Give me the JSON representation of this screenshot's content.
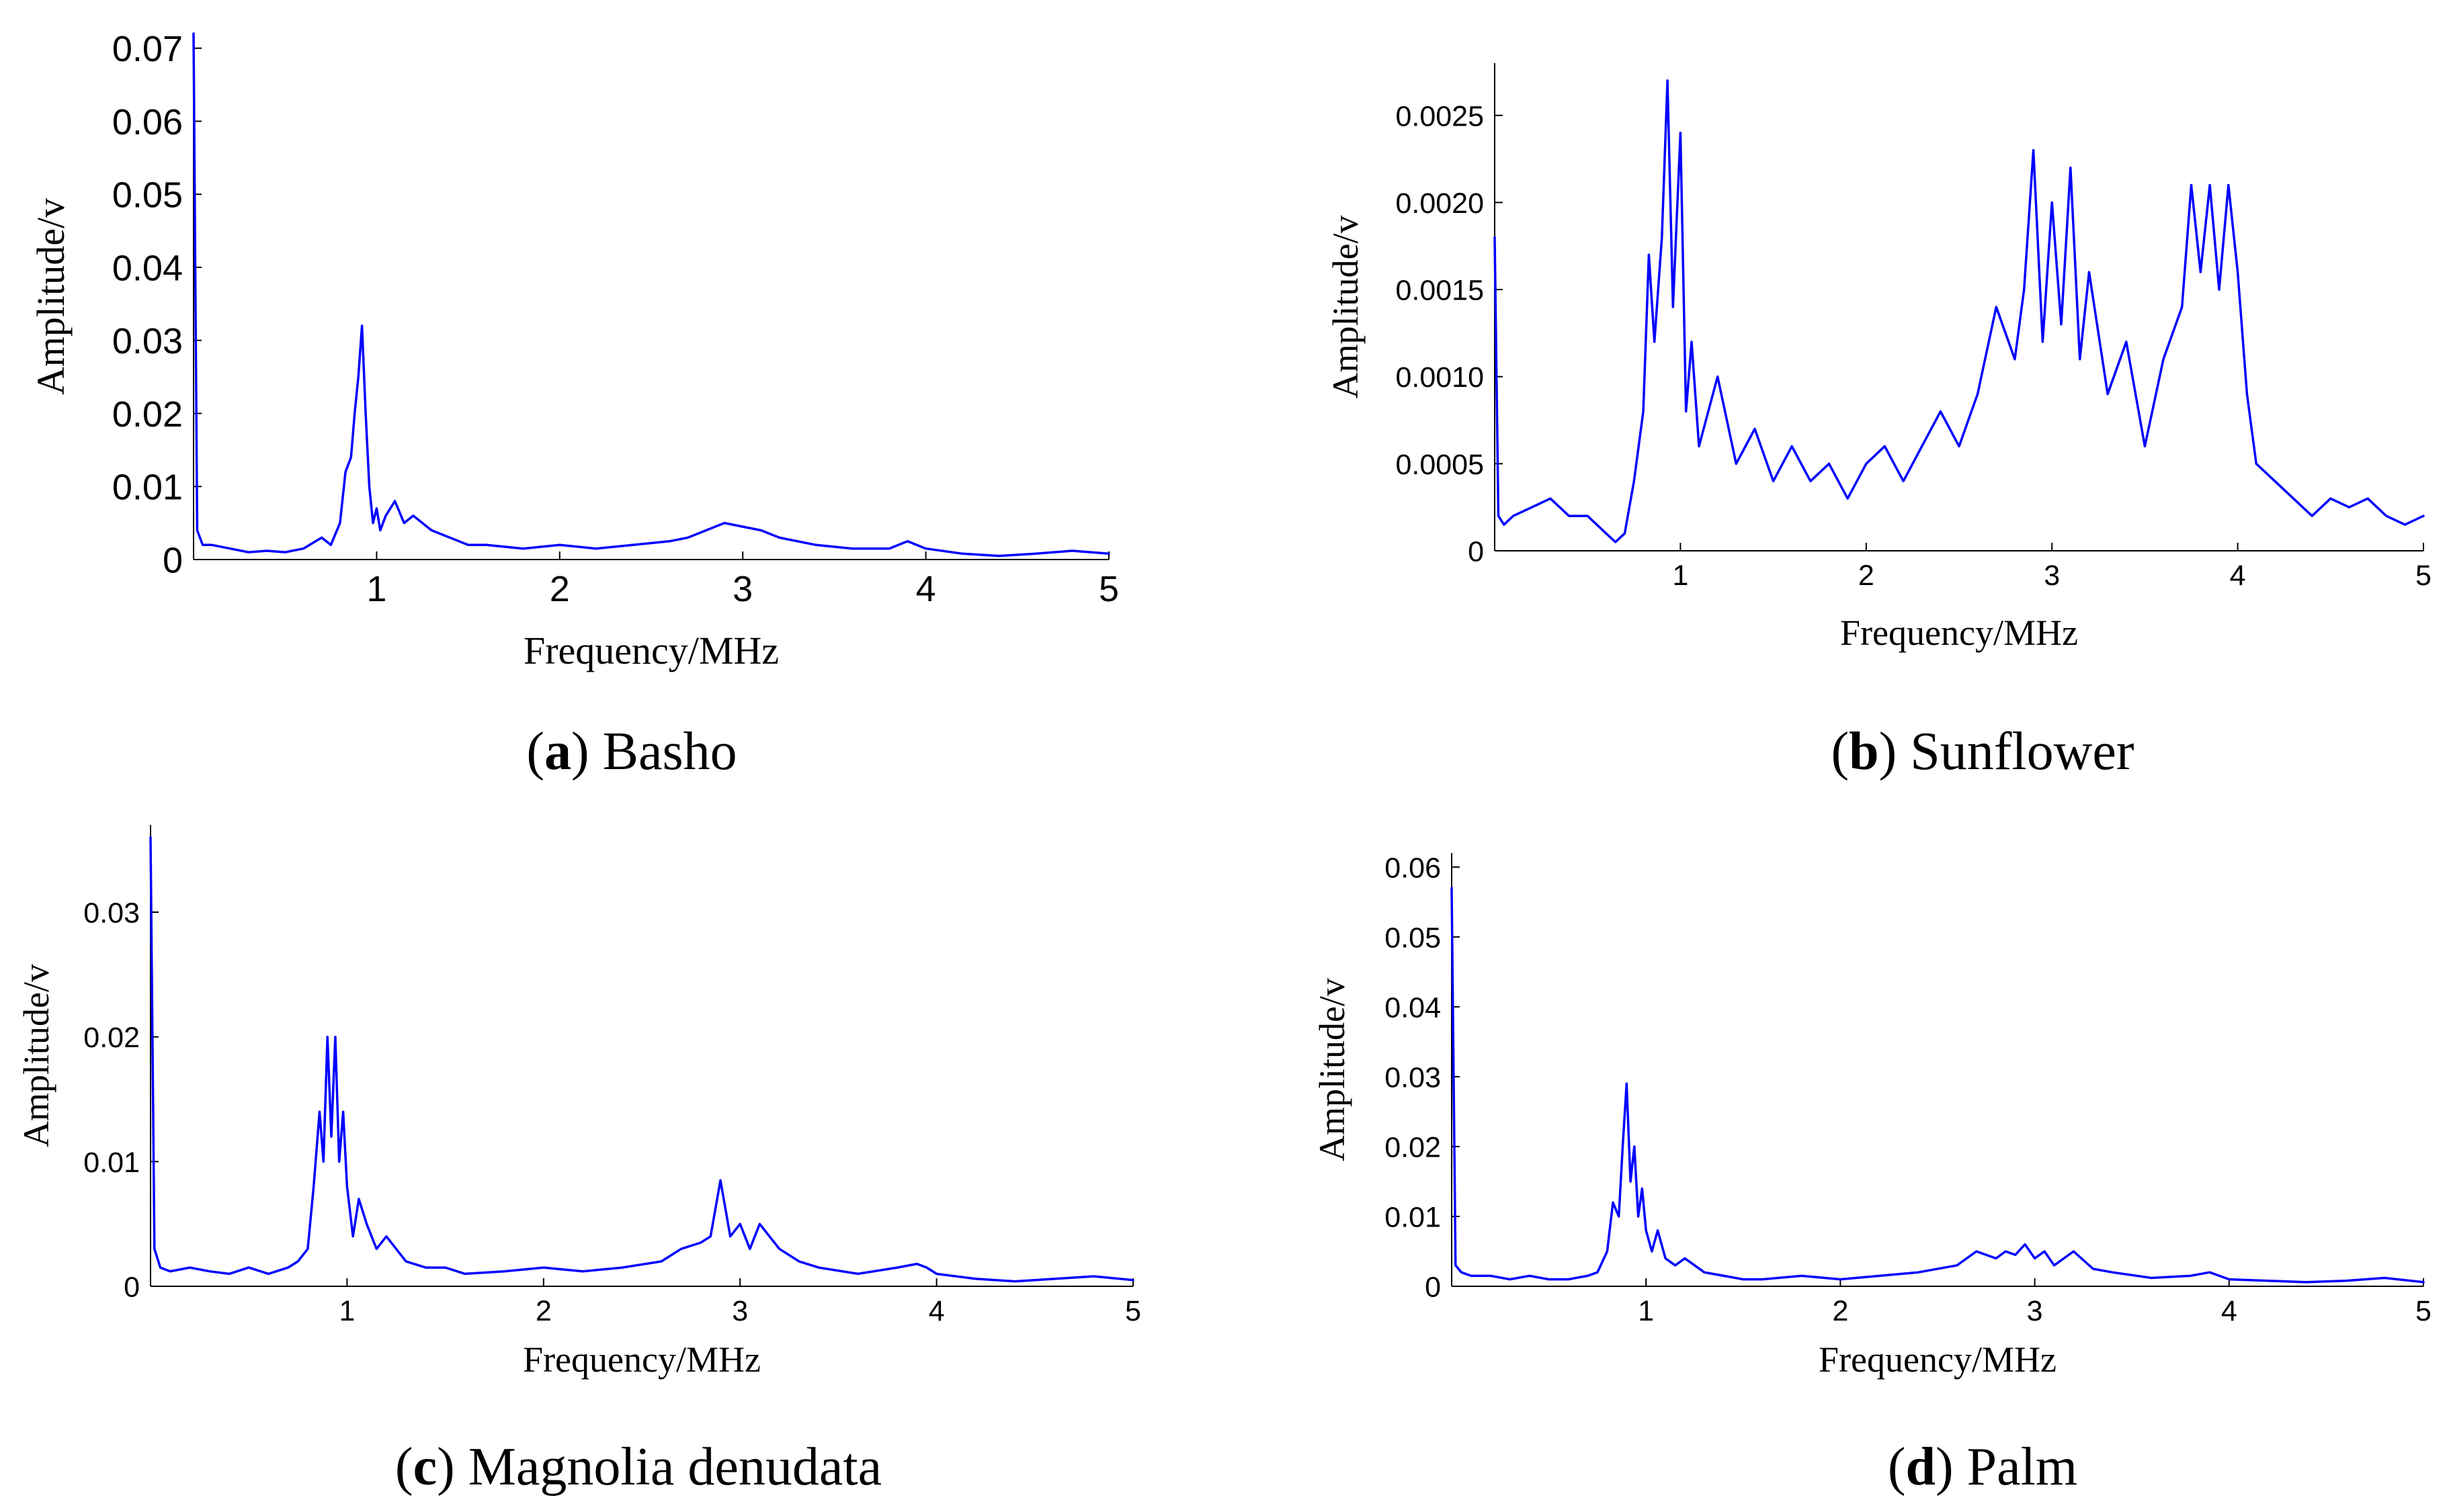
{
  "chart_data": [
    {
      "type": "line",
      "caption": {
        "letter": "a",
        "text": "Basho"
      },
      "xlabel": "Frequency/MHz",
      "ylabel": "Amplitude/v",
      "xlim": [
        0,
        5
      ],
      "ylim": [
        0,
        0.072
      ],
      "xticks": [
        1,
        2,
        3,
        4,
        5
      ],
      "yticks": [
        0,
        0.01,
        0.02,
        0.03,
        0.04,
        0.05,
        0.06,
        0.07
      ],
      "ytick_labels": [
        "0",
        "0.01",
        "0.02",
        "0.03",
        "0.04",
        "0.05",
        "0.06",
        "0.07"
      ],
      "color": "#0000ff",
      "series": [
        {
          "x": [
            0,
            0.02,
            0.05,
            0.1,
            0.2,
            0.3,
            0.4,
            0.5,
            0.6,
            0.7,
            0.75,
            0.8,
            0.83,
            0.86,
            0.88,
            0.9,
            0.92,
            0.94,
            0.96,
            0.98,
            1.0,
            1.02,
            1.05,
            1.1,
            1.15,
            1.2,
            1.3,
            1.4,
            1.5,
            1.6,
            1.8,
            2.0,
            2.2,
            2.4,
            2.6,
            2.7,
            2.8,
            2.9,
            3.0,
            3.1,
            3.2,
            3.4,
            3.6,
            3.8,
            3.9,
            4.0,
            4.2,
            4.4,
            4.6,
            4.8,
            5.0
          ],
          "y": [
            0.072,
            0.004,
            0.002,
            0.002,
            0.0015,
            0.001,
            0.0012,
            0.001,
            0.0015,
            0.003,
            0.002,
            0.005,
            0.012,
            0.014,
            0.02,
            0.025,
            0.032,
            0.02,
            0.01,
            0.005,
            0.007,
            0.004,
            0.006,
            0.008,
            0.005,
            0.006,
            0.004,
            0.003,
            0.002,
            0.002,
            0.0015,
            0.002,
            0.0015,
            0.002,
            0.0025,
            0.003,
            0.004,
            0.005,
            0.0045,
            0.004,
            0.003,
            0.002,
            0.0015,
            0.0015,
            0.0025,
            0.0015,
            0.0008,
            0.0005,
            0.0008,
            0.0012,
            0.0008
          ]
        }
      ]
    },
    {
      "type": "line",
      "caption": {
        "letter": "b",
        "text": "Sunflower"
      },
      "xlabel": "Frequency/MHz",
      "ylabel": "Amplitude/v",
      "xlim": [
        0,
        5
      ],
      "ylim": [
        0,
        0.0028
      ],
      "xticks": [
        1,
        2,
        3,
        4,
        5
      ],
      "yticks": [
        0,
        0.0005,
        0.001,
        0.0015,
        0.002,
        0.0025
      ],
      "ytick_labels": [
        "0",
        "0.0005",
        "0.0010",
        "0.0015",
        "0.0020",
        "0.0025"
      ],
      "color": "#0000ff",
      "series": [
        {
          "x": [
            0,
            0.02,
            0.05,
            0.1,
            0.2,
            0.3,
            0.4,
            0.5,
            0.6,
            0.65,
            0.7,
            0.75,
            0.8,
            0.83,
            0.86,
            0.9,
            0.93,
            0.96,
            1.0,
            1.03,
            1.06,
            1.1,
            1.2,
            1.3,
            1.4,
            1.5,
            1.6,
            1.7,
            1.8,
            1.9,
            2.0,
            2.1,
            2.2,
            2.3,
            2.4,
            2.5,
            2.6,
            2.7,
            2.8,
            2.85,
            2.9,
            2.95,
            3.0,
            3.05,
            3.1,
            3.15,
            3.2,
            3.3,
            3.4,
            3.5,
            3.6,
            3.7,
            3.75,
            3.8,
            3.85,
            3.9,
            3.95,
            4.0,
            4.05,
            4.1,
            4.2,
            4.3,
            4.4,
            4.5,
            4.6,
            4.7,
            4.8,
            4.9,
            5.0
          ],
          "y": [
            0.0018,
            0.0002,
            0.00015,
            0.0002,
            0.00025,
            0.0003,
            0.0002,
            0.0002,
            0.0001,
            5e-05,
            0.0001,
            0.0004,
            0.0008,
            0.0017,
            0.0012,
            0.0018,
            0.0027,
            0.0014,
            0.0024,
            0.0008,
            0.0012,
            0.0006,
            0.001,
            0.0005,
            0.0007,
            0.0004,
            0.0006,
            0.0004,
            0.0005,
            0.0003,
            0.0005,
            0.0006,
            0.0004,
            0.0006,
            0.0008,
            0.0006,
            0.0009,
            0.0014,
            0.0011,
            0.0015,
            0.0023,
            0.0012,
            0.002,
            0.0013,
            0.0022,
            0.0011,
            0.0016,
            0.0009,
            0.0012,
            0.0006,
            0.0011,
            0.0014,
            0.0021,
            0.0016,
            0.0021,
            0.0015,
            0.0021,
            0.0016,
            0.0009,
            0.0005,
            0.0004,
            0.0003,
            0.0002,
            0.0003,
            0.00025,
            0.0003,
            0.0002,
            0.00015,
            0.0002
          ]
        }
      ]
    },
    {
      "type": "line",
      "caption": {
        "letter": "c",
        "text": "Magnolia denudata"
      },
      "xlabel": "Frequency/MHz",
      "ylabel": "Amplitude/v",
      "xlim": [
        0,
        5
      ],
      "ylim": [
        0,
        0.037
      ],
      "xticks": [
        1,
        2,
        3,
        4,
        5
      ],
      "yticks": [
        0,
        0.01,
        0.02,
        0.03
      ],
      "ytick_labels": [
        "0",
        "0.01",
        "0.02",
        "0.03"
      ],
      "color": "#0000ff",
      "series": [
        {
          "x": [
            0,
            0.02,
            0.05,
            0.1,
            0.2,
            0.3,
            0.4,
            0.5,
            0.6,
            0.7,
            0.75,
            0.8,
            0.83,
            0.86,
            0.88,
            0.9,
            0.92,
            0.94,
            0.96,
            0.98,
            1.0,
            1.03,
            1.06,
            1.1,
            1.15,
            1.2,
            1.3,
            1.4,
            1.5,
            1.6,
            1.8,
            2.0,
            2.2,
            2.4,
            2.6,
            2.7,
            2.8,
            2.85,
            2.9,
            2.95,
            3.0,
            3.05,
            3.1,
            3.2,
            3.3,
            3.4,
            3.6,
            3.8,
            3.9,
            3.95,
            4.0,
            4.2,
            4.4,
            4.6,
            4.8,
            5.0
          ],
          "y": [
            0.036,
            0.003,
            0.0015,
            0.0012,
            0.0015,
            0.0012,
            0.001,
            0.0015,
            0.001,
            0.0015,
            0.002,
            0.003,
            0.008,
            0.014,
            0.01,
            0.02,
            0.012,
            0.02,
            0.01,
            0.014,
            0.008,
            0.004,
            0.007,
            0.005,
            0.003,
            0.004,
            0.002,
            0.0015,
            0.0015,
            0.001,
            0.0012,
            0.0015,
            0.0012,
            0.0015,
            0.002,
            0.003,
            0.0035,
            0.004,
            0.0085,
            0.004,
            0.005,
            0.003,
            0.005,
            0.003,
            0.002,
            0.0015,
            0.001,
            0.0015,
            0.0018,
            0.0015,
            0.001,
            0.0006,
            0.0004,
            0.0006,
            0.0008,
            0.0005
          ]
        }
      ]
    },
    {
      "type": "line",
      "caption": {
        "letter": "d",
        "text": "Palm"
      },
      "xlabel": "Frequency/MHz",
      "ylabel": "Amplitude/v",
      "xlim": [
        0,
        5
      ],
      "ylim": [
        0,
        0.062
      ],
      "xticks": [
        1,
        2,
        3,
        4,
        5
      ],
      "yticks": [
        0,
        0.01,
        0.02,
        0.03,
        0.04,
        0.05,
        0.06
      ],
      "ytick_labels": [
        "0",
        "0.01",
        "0.02",
        "0.03",
        "0.04",
        "0.05",
        "0.06"
      ],
      "color": "#0000ff",
      "series": [
        {
          "x": [
            0,
            0.02,
            0.05,
            0.1,
            0.2,
            0.3,
            0.4,
            0.5,
            0.6,
            0.7,
            0.75,
            0.8,
            0.83,
            0.86,
            0.88,
            0.9,
            0.92,
            0.94,
            0.96,
            0.98,
            1.0,
            1.03,
            1.06,
            1.1,
            1.15,
            1.2,
            1.3,
            1.4,
            1.5,
            1.6,
            1.8,
            2.0,
            2.2,
            2.4,
            2.6,
            2.7,
            2.8,
            2.85,
            2.9,
            2.95,
            3.0,
            3.05,
            3.1,
            3.2,
            3.3,
            3.4,
            3.6,
            3.8,
            3.9,
            3.95,
            4.0,
            4.2,
            4.4,
            4.6,
            4.8,
            5.0
          ],
          "y": [
            0.057,
            0.003,
            0.002,
            0.0015,
            0.0015,
            0.001,
            0.0015,
            0.001,
            0.001,
            0.0015,
            0.002,
            0.005,
            0.012,
            0.01,
            0.02,
            0.029,
            0.015,
            0.02,
            0.01,
            0.014,
            0.008,
            0.005,
            0.008,
            0.004,
            0.003,
            0.004,
            0.002,
            0.0015,
            0.001,
            0.001,
            0.0015,
            0.001,
            0.0015,
            0.002,
            0.003,
            0.005,
            0.004,
            0.005,
            0.0045,
            0.006,
            0.004,
            0.005,
            0.003,
            0.005,
            0.0025,
            0.002,
            0.0012,
            0.0015,
            0.002,
            0.0015,
            0.001,
            0.0008,
            0.0006,
            0.0008,
            0.0012,
            0.0006
          ]
        }
      ]
    }
  ]
}
